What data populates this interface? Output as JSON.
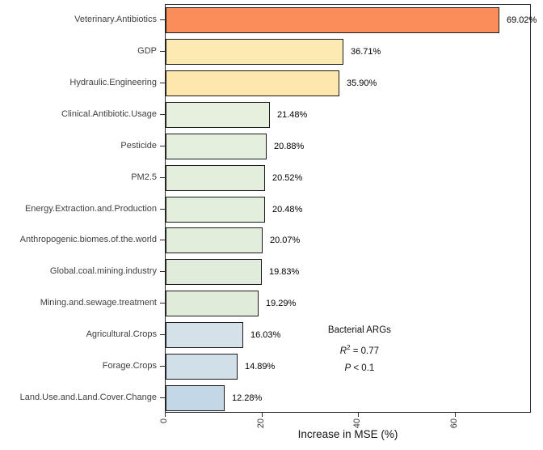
{
  "figure": {
    "background": "#ffffff"
  },
  "chart_data": {
    "type": "bar",
    "orientation": "horizontal",
    "title": "",
    "xlabel": "Increase in MSE (%)",
    "ylabel": "",
    "xlim": [
      0,
      75.7
    ],
    "x_tick_values": [
      0,
      20,
      40,
      60
    ],
    "x_tick_labels": [
      "0",
      "20",
      "40",
      "60"
    ],
    "grid": false,
    "legend": false,
    "categories": [
      "Veterinary.Antibiotics",
      "GDP",
      "Hydraulic.Engineering",
      "Clinical.Antibiotic.Usage",
      "Pesticide",
      "PM2.5",
      "Energy.Extraction.and.Production",
      "Anthropogenic.biomes.of.the.world",
      "Global.coal.mining.industry",
      "Mining.and.sewage.treatment",
      "Agricultural.Crops",
      "Forage.Crops",
      "Land.Use.and.Land.Cover.Change"
    ],
    "values": [
      69.02,
      36.71,
      35.9,
      21.48,
      20.88,
      20.52,
      20.48,
      20.07,
      19.83,
      19.29,
      16.03,
      14.89,
      12.28
    ],
    "value_labels": [
      "69.02%",
      "36.71%",
      "35.90%",
      "21.48%",
      "20.88%",
      "20.52%",
      "20.48%",
      "20.07%",
      "19.83%",
      "19.29%",
      "16.03%",
      "14.89%",
      "12.28%"
    ],
    "bar_colors": [
      "#F98E5B",
      "#FDE9B2",
      "#FDE7AC",
      "#E7F0DF",
      "#E5EFDD",
      "#E4EEDD",
      "#E4EEDC",
      "#E3EDDC",
      "#E2ECDB",
      "#E0EBDA",
      "#D4E1E9",
      "#D1DFE8",
      "#C3D7E6"
    ],
    "bar_border_color": "#1a1a1a",
    "panel_border_color": "#2b2b2b",
    "annotation": {
      "title": "Bacterial ARGs",
      "r2": "0.77",
      "p": "< 0.1"
    }
  }
}
